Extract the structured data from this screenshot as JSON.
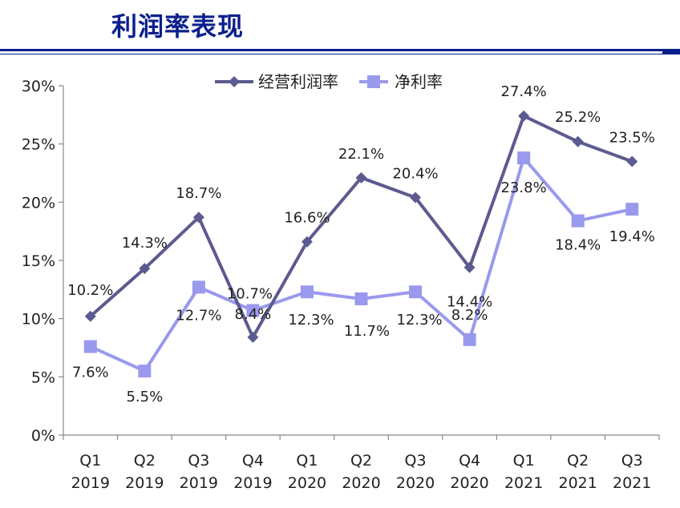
{
  "header": {
    "title": "利润率表现"
  },
  "chart_data": {
    "type": "line",
    "title": "",
    "xlabel": "",
    "ylabel": "",
    "ylim": [
      0,
      30
    ],
    "yticks": [
      "0%",
      "5%",
      "10%",
      "15%",
      "20%",
      "25%",
      "30%"
    ],
    "categories": [
      [
        "Q1",
        "2019"
      ],
      [
        "Q2",
        "2019"
      ],
      [
        "Q3",
        "2019"
      ],
      [
        "Q4",
        "2019"
      ],
      [
        "Q1",
        "2020"
      ],
      [
        "Q2",
        "2020"
      ],
      [
        "Q3",
        "2020"
      ],
      [
        "Q4",
        "2020"
      ],
      [
        "Q1",
        "2021"
      ],
      [
        "Q2",
        "2021"
      ],
      [
        "Q3",
        "2021"
      ]
    ],
    "legend_position": "top-center",
    "grid": false,
    "series": [
      {
        "name": "经营利润率",
        "marker": "diamond",
        "color": "#5b5b8f",
        "values": [
          10.2,
          14.3,
          18.7,
          8.4,
          16.6,
          22.1,
          20.4,
          14.4,
          27.4,
          25.2,
          23.5
        ],
        "labels": [
          "10.2%",
          "14.3%",
          "18.7%",
          "8.4%",
          "16.6%",
          "22.1%",
          "20.4%",
          "14.4%",
          "27.4%",
          "25.2%",
          "23.5%"
        ]
      },
      {
        "name": "净利率",
        "marker": "square",
        "color": "#9999ee",
        "values": [
          7.6,
          5.5,
          12.7,
          10.7,
          12.3,
          11.7,
          12.3,
          8.2,
          23.8,
          18.4,
          19.4
        ],
        "labels": [
          "7.6%",
          "5.5%",
          "12.7%",
          "10.7%",
          "12.3%",
          "11.7%",
          "12.3%",
          "8.2%",
          "23.8%",
          "18.4%",
          "19.4%"
        ]
      }
    ]
  }
}
